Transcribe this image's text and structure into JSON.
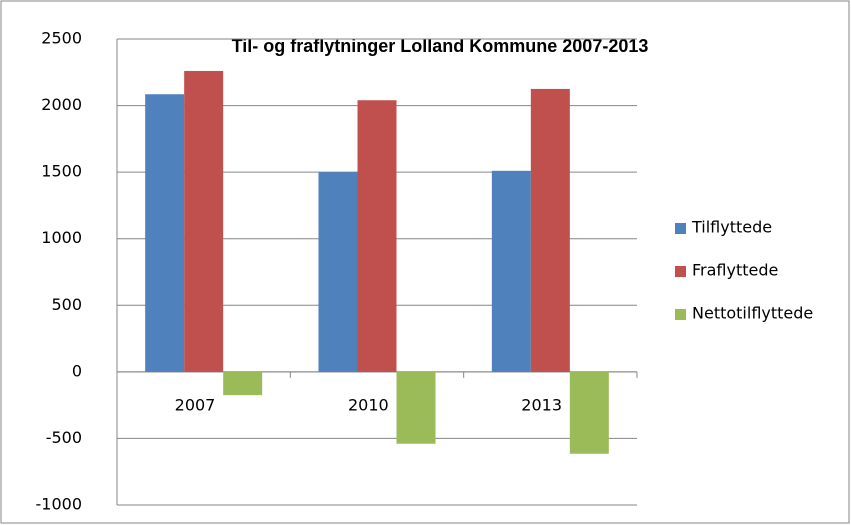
{
  "chart_data": {
    "type": "bar",
    "title": "Til- og fraflytninger Lolland Kommune 2007-2013",
    "categories": [
      "2007",
      "2010",
      "2013"
    ],
    "series": [
      {
        "name": "Tilflyttede",
        "color": "#4f81bd",
        "values": [
          2085,
          1500,
          1510
        ]
      },
      {
        "name": "Fraflyttede",
        "color": "#c0504d",
        "values": [
          2260,
          2040,
          2125
        ]
      },
      {
        "name": "Nettotilflyttede",
        "color": "#9bbb59",
        "values": [
          -175,
          -540,
          -615
        ]
      }
    ],
    "ylim": [
      -1000,
      2500
    ],
    "yticks": [
      -1000,
      -500,
      0,
      500,
      1000,
      1500,
      2000,
      2500
    ],
    "grid": true,
    "legend": "right"
  }
}
